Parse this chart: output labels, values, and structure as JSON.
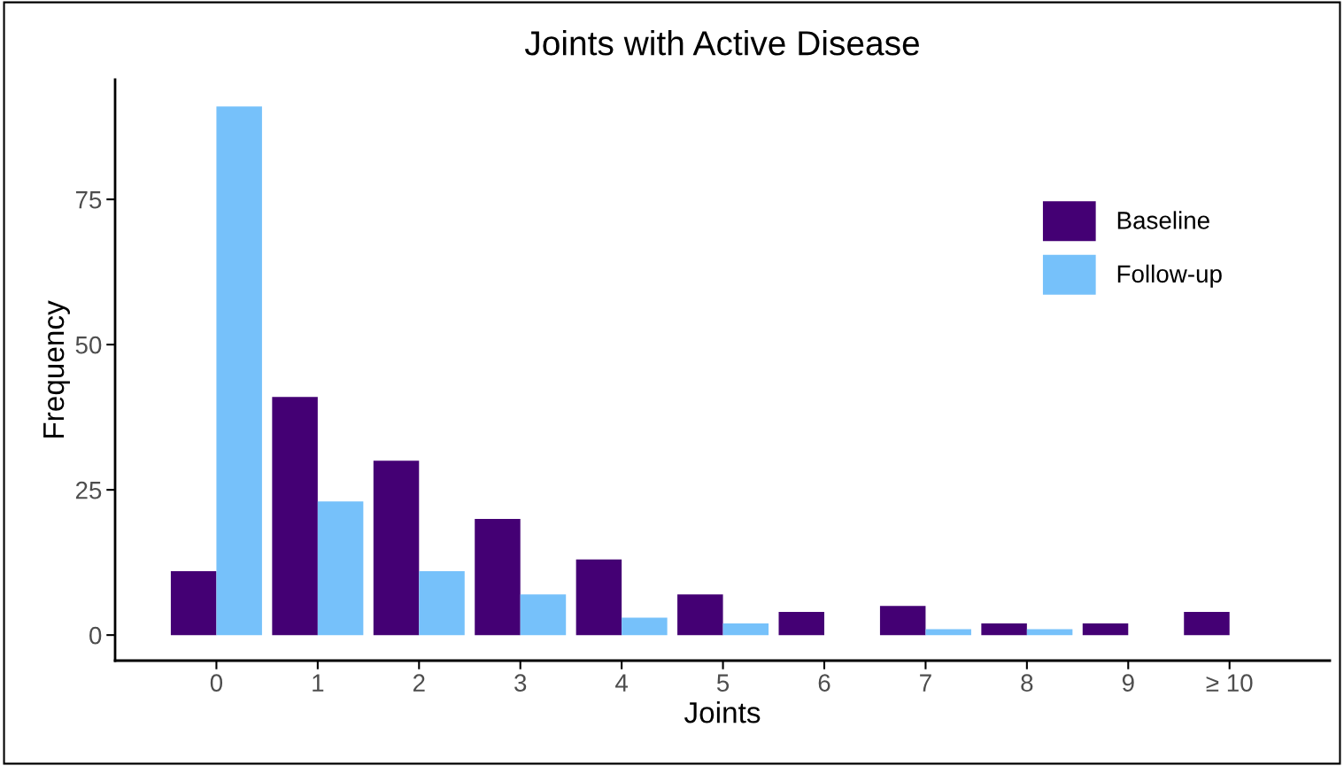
{
  "chart_data": {
    "type": "bar",
    "title": "Joints with Active Disease",
    "xlabel": "Joints",
    "ylabel": "Frequency",
    "categories": [
      "0",
      "1",
      "2",
      "3",
      "4",
      "5",
      "6",
      "7",
      "8",
      "9",
      "≥ 10"
    ],
    "series": [
      {
        "name": "Baseline",
        "color": "#440074",
        "values": [
          11,
          41,
          30,
          20,
          13,
          7,
          4,
          5,
          2,
          2,
          4
        ]
      },
      {
        "name": "Follow-up",
        "color": "#76c1fa",
        "values": [
          91,
          23,
          11,
          7,
          3,
          2,
          0,
          1,
          1,
          0,
          0
        ]
      }
    ],
    "ylim": [
      -4.4,
      95.6
    ],
    "yticks": [
      0,
      25,
      50,
      75
    ],
    "grid": false,
    "legend": "top right"
  }
}
